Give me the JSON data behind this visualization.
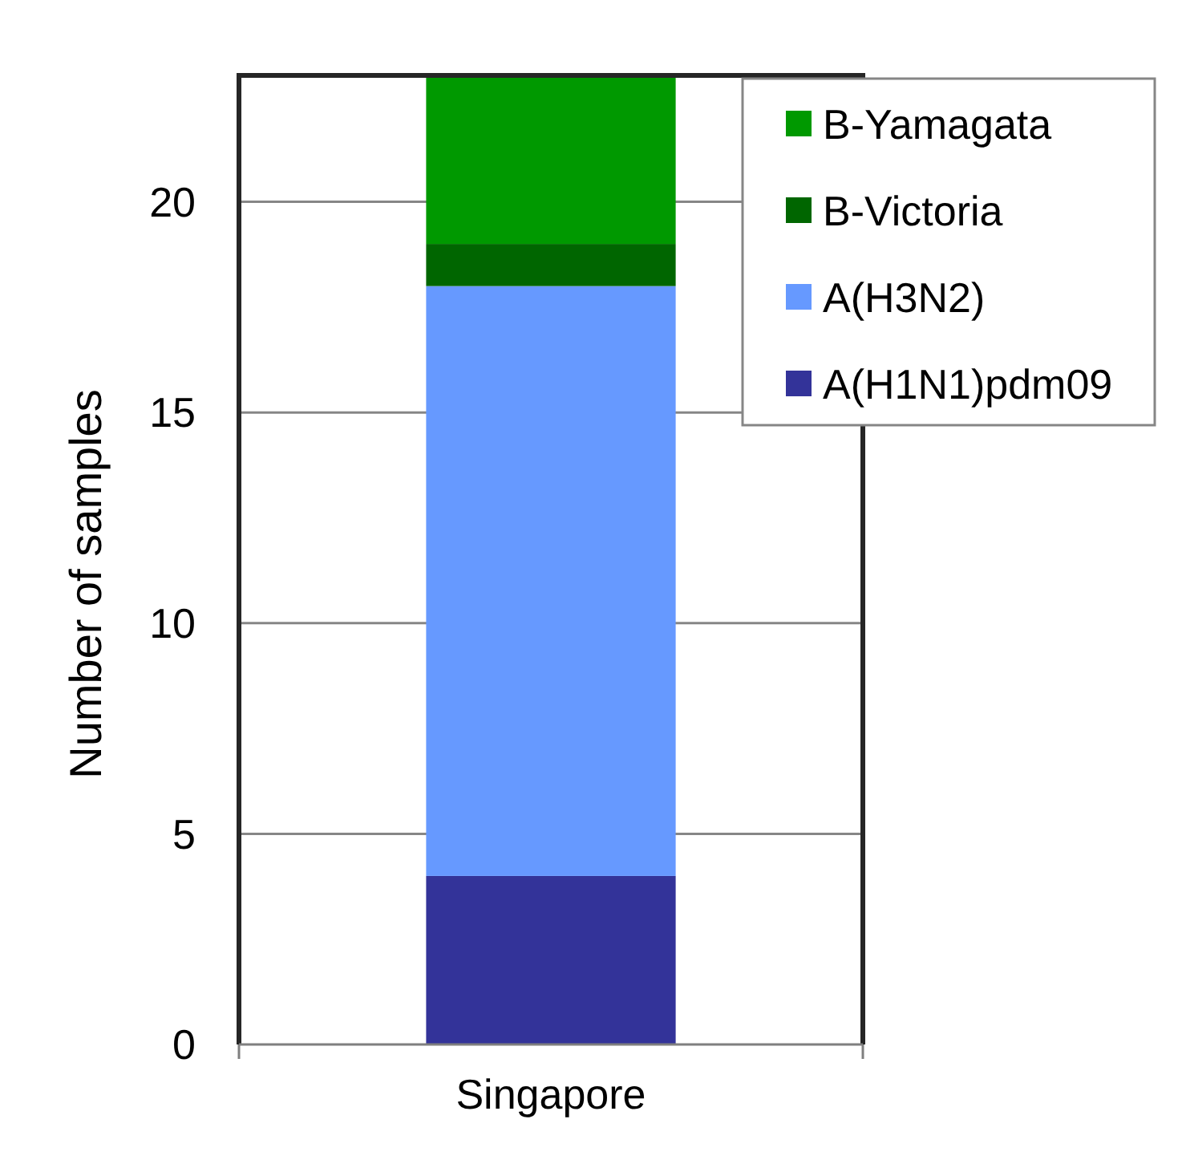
{
  "chart_data": {
    "type": "bar",
    "categories": [
      "Singapore"
    ],
    "series": [
      {
        "name": "A(H1N1)pdm09",
        "color": "#333399",
        "values": [
          4
        ]
      },
      {
        "name": "A(H3N2)",
        "color": "#6699ff",
        "values": [
          14
        ]
      },
      {
        "name": "B-Victoria",
        "color": "#006600",
        "values": [
          1
        ]
      },
      {
        "name": "B-Yamagata",
        "color": "#009900",
        "values": [
          4
        ]
      }
    ],
    "stacked": true,
    "ylabel": "Number of samples",
    "ylim": [
      0,
      23
    ],
    "yticks": [
      0,
      5,
      10,
      15,
      20
    ],
    "grid": "y",
    "legend": "top right"
  }
}
